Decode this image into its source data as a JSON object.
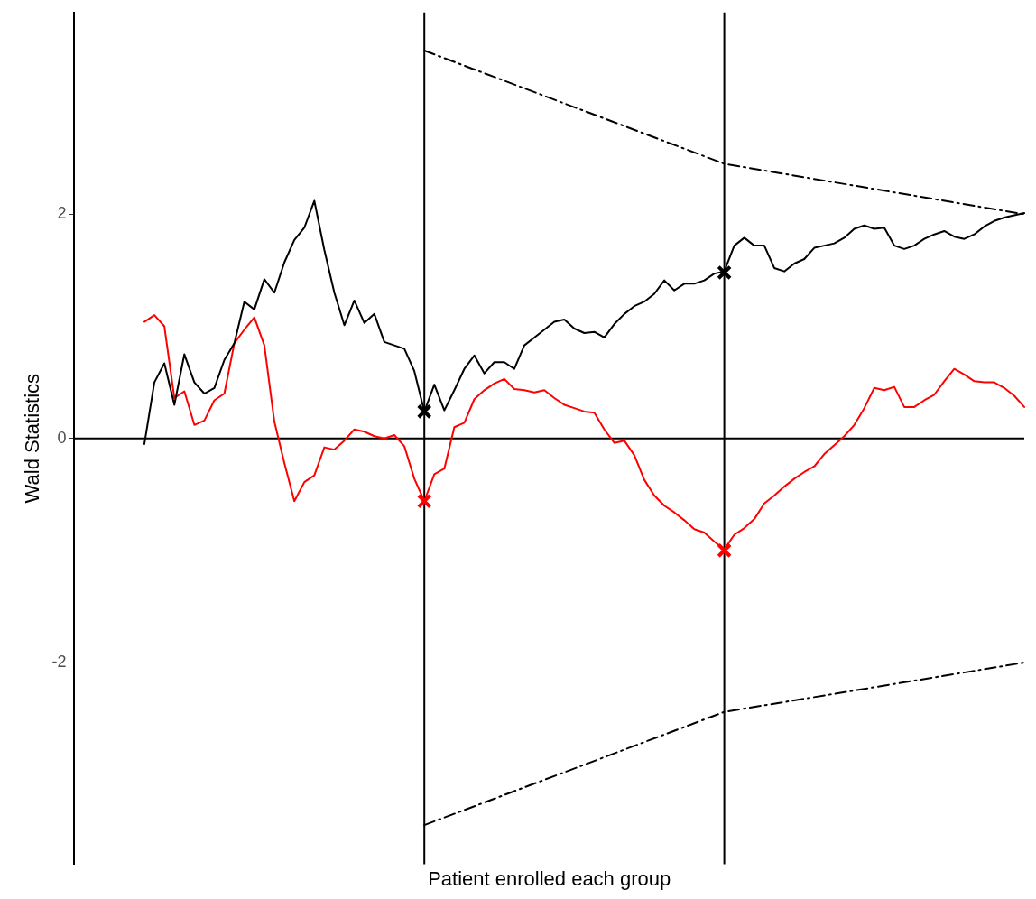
{
  "chart_data": {
    "type": "line",
    "xlabel": "Patient enrolled each group",
    "ylabel": "Wald Statistics",
    "categories": [
      null,
      null,
      null,
      null,
      null,
      null,
      null,
      null,
      null,
      null,
      null,
      null,
      null,
      null,
      null,
      null,
      null,
      null,
      null,
      null,
      null,
      null,
      null,
      null,
      null,
      null,
      null,
      null,
      null,
      null,
      null,
      null,
      null,
      null,
      null,
      null,
      null,
      null,
      null,
      null,
      null,
      null,
      null,
      null,
      null,
      null,
      null,
      null,
      null,
      null,
      null,
      null,
      null,
      null,
      null,
      null,
      null,
      null,
      null,
      null,
      null,
      null,
      null,
      null,
      null,
      null,
      null,
      null,
      null,
      null,
      null,
      null,
      null,
      null,
      null,
      null,
      null,
      null,
      null,
      null,
      null,
      null,
      null,
      null,
      null,
      null,
      null,
      null,
      null,
      null,
      null,
      null,
      null,
      null,
      null,
      null
    ],
    "ylim": [
      -3.8,
      3.8
    ],
    "yticks": [
      -2,
      0,
      2
    ],
    "tick_labels": "y",
    "grid": false,
    "legend": false,
    "marker": "none",
    "ref_lines": [
      {
        "axis": "y",
        "value": 0,
        "color": "#000000"
      }
    ],
    "series": [
      {
        "color": "#000000",
        "line_style": "solid",
        "values": [
          null,
          null,
          null,
          null,
          null,
          null,
          null,
          -0.05,
          0.5,
          0.67,
          0.3,
          0.75,
          0.5,
          0.4,
          0.45,
          0.7,
          0.85,
          1.22,
          1.15,
          1.42,
          1.3,
          1.57,
          1.77,
          1.88,
          2.12,
          1.68,
          1.3,
          1.01,
          1.23,
          1.03,
          1.11,
          0.86,
          0.83,
          0.8,
          0.6,
          0.24,
          0.48,
          0.25,
          0.43,
          0.62,
          0.74,
          0.58,
          0.68,
          0.68,
          0.62,
          0.83,
          0.9,
          0.97,
          1.04,
          1.06,
          0.98,
          0.94,
          0.95,
          0.9,
          1.02,
          1.11,
          1.18,
          1.22,
          1.29,
          1.41,
          1.32,
          1.38,
          1.38,
          1.41,
          1.47,
          1.49,
          1.72,
          1.79,
          1.72,
          1.72,
          1.52,
          1.49,
          1.56,
          1.6,
          1.7,
          1.72,
          1.74,
          1.79,
          1.87,
          1.9,
          1.87,
          1.88,
          1.72,
          1.69,
          1.72,
          1.78,
          1.82,
          1.85,
          1.8,
          1.78,
          1.82,
          1.89,
          1.94,
          1.97,
          1.99,
          2.01
        ]
      },
      {
        "color": "#ff0000",
        "line_style": "solid",
        "values": [
          null,
          null,
          null,
          null,
          null,
          null,
          null,
          1.04,
          1.1,
          1.0,
          0.36,
          0.42,
          0.12,
          0.16,
          0.34,
          0.4,
          0.85,
          0.97,
          1.08,
          0.83,
          0.15,
          -0.22,
          -0.56,
          -0.39,
          -0.33,
          -0.08,
          -0.1,
          -0.02,
          0.08,
          0.06,
          0.02,
          0.0,
          0.03,
          -0.07,
          -0.36,
          -0.56,
          -0.32,
          -0.27,
          0.1,
          0.14,
          0.35,
          0.43,
          0.49,
          0.53,
          0.44,
          0.43,
          0.41,
          0.43,
          0.36,
          0.3,
          0.27,
          0.24,
          0.23,
          0.08,
          -0.04,
          -0.02,
          -0.15,
          -0.37,
          -0.51,
          -0.6,
          -0.66,
          -0.73,
          -0.81,
          -0.84,
          -0.92,
          -0.99,
          -0.86,
          -0.8,
          -0.72,
          -0.58,
          -0.51,
          -0.43,
          -0.36,
          -0.3,
          -0.25,
          -0.14,
          -0.06,
          0.02,
          0.12,
          0.27,
          0.45,
          0.43,
          0.46,
          0.28,
          0.28,
          0.34,
          0.39,
          0.51,
          0.62,
          0.57,
          0.51,
          0.5,
          0.5,
          0.45,
          0.38,
          0.28
        ]
      },
      {
        "type": "line",
        "color": "#000000",
        "line_style": "dashed",
        "values": [
          null,
          null,
          null,
          null,
          null,
          null,
          null,
          null,
          null,
          null,
          null,
          null,
          null,
          null,
          null,
          null,
          null,
          null,
          null,
          null,
          null,
          null,
          null,
          null,
          null,
          null,
          null,
          null,
          null,
          null,
          null,
          null,
          null,
          null,
          null,
          3.46,
          null,
          null,
          null,
          null,
          null,
          null,
          null,
          null,
          null,
          null,
          null,
          null,
          null,
          null,
          null,
          null,
          null,
          null,
          null,
          null,
          null,
          null,
          null,
          null,
          null,
          null,
          null,
          null,
          null,
          2.45,
          null,
          null,
          null,
          null,
          null,
          null,
          null,
          null,
          null,
          null,
          null,
          null,
          null,
          null,
          null,
          null,
          null,
          null,
          null,
          null,
          null,
          null,
          null,
          null,
          null,
          null,
          null,
          null,
          null,
          2.0
        ]
      },
      {
        "type": "line",
        "color": "#000000",
        "line_style": "dashed",
        "values": [
          null,
          null,
          null,
          null,
          null,
          null,
          null,
          null,
          null,
          null,
          null,
          null,
          null,
          null,
          null,
          null,
          null,
          null,
          null,
          null,
          null,
          null,
          null,
          null,
          null,
          null,
          null,
          null,
          null,
          null,
          null,
          null,
          null,
          null,
          null,
          -3.45,
          null,
          null,
          null,
          null,
          null,
          null,
          null,
          null,
          null,
          null,
          null,
          null,
          null,
          null,
          null,
          null,
          null,
          null,
          null,
          null,
          null,
          null,
          null,
          null,
          null,
          null,
          null,
          null,
          null,
          -2.44,
          null,
          null,
          null,
          null,
          null,
          null,
          null,
          null,
          null,
          null,
          null,
          null,
          null,
          null,
          null,
          null,
          null,
          null,
          null,
          null,
          null,
          null,
          null,
          null,
          null,
          null,
          null,
          null,
          null,
          -2.0
        ]
      },
      {
        "type": "scatter",
        "color": "#000000",
        "marker": "cross",
        "values": [
          null,
          null,
          null,
          null,
          null,
          null,
          null,
          null,
          null,
          null,
          null,
          null,
          null,
          null,
          null,
          null,
          null,
          null,
          null,
          null,
          null,
          null,
          null,
          null,
          null,
          null,
          null,
          null,
          null,
          null,
          null,
          null,
          null,
          null,
          null,
          0.24,
          null,
          null,
          null,
          null,
          null,
          null,
          null,
          null,
          null,
          null,
          null,
          null,
          null,
          null,
          null,
          null,
          null,
          null,
          null,
          null,
          null,
          null,
          null,
          null,
          null,
          null,
          null,
          null,
          null,
          1.48,
          null,
          null,
          null,
          null,
          null,
          null,
          null,
          null,
          null,
          null,
          null,
          null,
          null,
          null,
          null,
          null,
          null,
          null,
          null,
          null,
          null,
          null,
          null,
          null,
          null,
          null,
          null,
          null,
          null,
          null
        ]
      },
      {
        "type": "scatter",
        "color": "#ff0000",
        "marker": "cross",
        "values": [
          null,
          null,
          null,
          null,
          null,
          null,
          null,
          null,
          null,
          null,
          null,
          null,
          null,
          null,
          null,
          null,
          null,
          null,
          null,
          null,
          null,
          null,
          null,
          null,
          null,
          null,
          null,
          null,
          null,
          null,
          null,
          null,
          null,
          null,
          null,
          -0.56,
          null,
          null,
          null,
          null,
          null,
          null,
          null,
          null,
          null,
          null,
          null,
          null,
          null,
          null,
          null,
          null,
          null,
          null,
          null,
          null,
          null,
          null,
          null,
          null,
          null,
          null,
          null,
          null,
          null,
          -1.0,
          null,
          null,
          null,
          null,
          null,
          null,
          null,
          null,
          null,
          null,
          null,
          null,
          null,
          null,
          null,
          null,
          null,
          null,
          null,
          null,
          null,
          null,
          null,
          null,
          null,
          null,
          null,
          null,
          null,
          null
        ]
      }
    ]
  }
}
